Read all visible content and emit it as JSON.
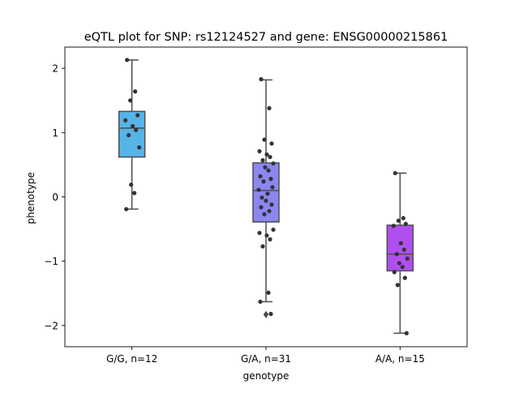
{
  "chart_data": {
    "type": "box",
    "title": "eQTL plot for SNP: rs12124527 and gene: ENSG00000215861",
    "xlabel": "genotype",
    "ylabel": "phenotype",
    "ylim": [
      -2.33,
      2.33
    ],
    "yticks": [
      -2,
      -1,
      0,
      1,
      2
    ],
    "yticklabels": [
      "−2",
      "−1",
      "0",
      "1",
      "2"
    ],
    "grid": false,
    "legend": "none",
    "categories": [
      "G/G, n=12",
      "G/A, n=31",
      "A/A, n=15"
    ],
    "groups": [
      {
        "category": "G/G, n=12",
        "color": "#56b4e9",
        "box": {
          "whisker_low": -0.19,
          "q1": 0.62,
          "median": 1.07,
          "q3": 1.33,
          "whisker_high": 2.13
        },
        "fliers": [],
        "points": [
          2.13,
          1.64,
          1.5,
          1.27,
          1.19,
          1.1,
          1.04,
          0.96,
          0.77,
          0.19,
          0.06,
          -0.19
        ]
      },
      {
        "category": "G/A, n=31",
        "color": "#8b87f0",
        "box": {
          "whisker_low": -1.63,
          "q1": -0.39,
          "median": 0.1,
          "q3": 0.53,
          "whisker_high": 1.82
        },
        "fliers": [
          -1.83
        ],
        "points": [
          1.83,
          1.38,
          0.89,
          0.83,
          0.71,
          0.66,
          0.62,
          0.57,
          0.52,
          0.46,
          0.41,
          0.32,
          0.28,
          0.24,
          0.15,
          0.11,
          0.05,
          -0.01,
          -0.06,
          -0.12,
          -0.16,
          -0.22,
          -0.27,
          -0.51,
          -0.56,
          -0.6,
          -0.66,
          -0.77,
          -1.49,
          -1.63,
          -1.82
        ]
      },
      {
        "category": "A/A, n=15",
        "color": "#b04fef",
        "box": {
          "whisker_low": -2.12,
          "q1": -1.15,
          "median": -0.89,
          "q3": -0.44,
          "whisker_high": 0.37
        },
        "fliers": [],
        "points": [
          0.37,
          -0.33,
          -0.37,
          -0.42,
          -0.45,
          -0.72,
          -0.82,
          -0.89,
          -0.96,
          -1.03,
          -1.09,
          -1.17,
          -1.26,
          -1.37,
          -2.12
        ]
      }
    ]
  }
}
